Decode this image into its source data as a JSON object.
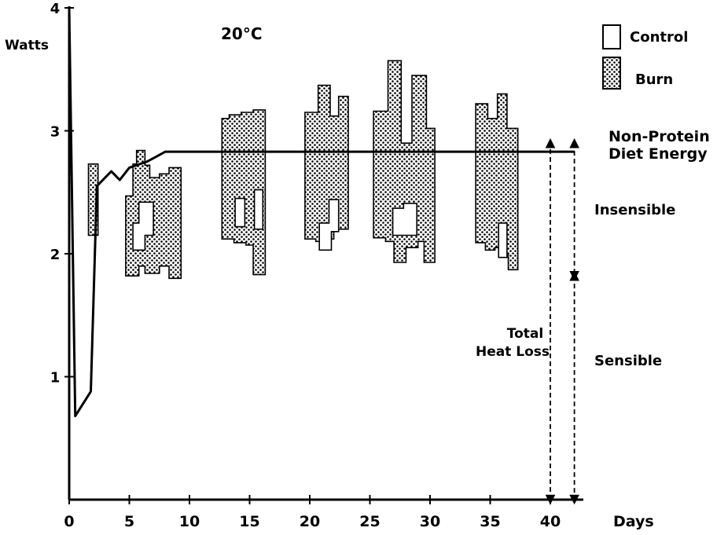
{
  "chart_data": {
    "type": "area",
    "ylabel": "Watts",
    "xlabel": "Days",
    "temperature": "20°C",
    "xlim": [
      0,
      42
    ],
    "ylim": [
      0,
      4
    ],
    "xticks": [
      "0",
      "5",
      "10",
      "15",
      "20",
      "25",
      "30",
      "35",
      "40"
    ],
    "yticks": [
      "1",
      "2",
      "3",
      "4"
    ],
    "legend": {
      "placement": "top-right",
      "entries": [
        {
          "name": "Control",
          "style": "open"
        },
        {
          "name": "Burn",
          "style": "stippled"
        }
      ]
    },
    "diet_energy": {
      "label_line1": "Non-Protein",
      "label_line2": "Diet Energy",
      "points": [
        [
          0,
          4.0
        ],
        [
          0.5,
          0.68
        ],
        [
          1.8,
          0.88
        ],
        [
          2.3,
          2.55
        ],
        [
          3.5,
          2.67
        ],
        [
          4.2,
          2.6
        ],
        [
          5.0,
          2.7
        ],
        [
          6.5,
          2.75
        ],
        [
          8.0,
          2.83
        ],
        [
          42,
          2.83
        ]
      ]
    },
    "burn_blocks": [
      {
        "top": [
          [
            1.6,
            2.73
          ],
          [
            2.4,
            2.73
          ]
        ],
        "bottom": [
          [
            1.6,
            2.15
          ],
          [
            2.4,
            2.15
          ]
        ]
      },
      {
        "top": [
          [
            4.7,
            2.47
          ],
          [
            5.3,
            2.47
          ],
          [
            5.3,
            2.73
          ],
          [
            5.6,
            2.73
          ],
          [
            5.6,
            2.84
          ],
          [
            6.3,
            2.84
          ],
          [
            6.3,
            2.72
          ],
          [
            6.7,
            2.72
          ],
          [
            6.7,
            2.62
          ],
          [
            7.5,
            2.62
          ],
          [
            7.5,
            2.65
          ],
          [
            8.3,
            2.65
          ],
          [
            8.3,
            2.7
          ],
          [
            9.3,
            2.7
          ]
        ],
        "bottom": [
          [
            4.7,
            1.82
          ],
          [
            5.8,
            1.82
          ],
          [
            5.8,
            1.9
          ],
          [
            6.3,
            1.9
          ],
          [
            6.3,
            1.84
          ],
          [
            7.5,
            1.84
          ],
          [
            7.5,
            1.9
          ],
          [
            8.3,
            1.9
          ],
          [
            8.3,
            1.8
          ],
          [
            9.3,
            1.8
          ]
        ]
      },
      {
        "top": [
          [
            12.7,
            3.1
          ],
          [
            13.3,
            3.1
          ],
          [
            13.3,
            3.13
          ],
          [
            14.3,
            3.13
          ],
          [
            14.3,
            3.15
          ],
          [
            15.3,
            3.15
          ],
          [
            15.3,
            3.17
          ],
          [
            16.3,
            3.17
          ]
        ],
        "bottom": [
          [
            12.7,
            2.12
          ],
          [
            13.7,
            2.12
          ],
          [
            13.7,
            2.09
          ],
          [
            14.7,
            2.09
          ],
          [
            14.7,
            2.07
          ],
          [
            15.3,
            2.07
          ],
          [
            15.3,
            1.83
          ],
          [
            16.3,
            1.83
          ]
        ]
      },
      {
        "top": [
          [
            19.6,
            3.15
          ],
          [
            20.7,
            3.15
          ],
          [
            20.7,
            3.37
          ],
          [
            21.7,
            3.37
          ],
          [
            21.7,
            3.12
          ],
          [
            22.4,
            3.12
          ],
          [
            22.4,
            3.28
          ],
          [
            23.2,
            3.28
          ]
        ],
        "bottom": [
          [
            19.6,
            2.12
          ],
          [
            20.5,
            2.12
          ],
          [
            20.5,
            2.1
          ],
          [
            21.0,
            2.1
          ],
          [
            21.0,
            2.12
          ],
          [
            22.0,
            2.12
          ],
          [
            22.0,
            2.2
          ],
          [
            23.2,
            2.2
          ]
        ]
      },
      {
        "top": [
          [
            25.3,
            3.16
          ],
          [
            26.5,
            3.16
          ],
          [
            26.5,
            3.57
          ],
          [
            27.6,
            3.57
          ],
          [
            27.6,
            2.9
          ],
          [
            28.5,
            2.9
          ],
          [
            28.5,
            3.45
          ],
          [
            29.7,
            3.45
          ],
          [
            29.7,
            3.02
          ],
          [
            30.4,
            3.02
          ]
        ],
        "bottom": [
          [
            25.3,
            2.13
          ],
          [
            26.3,
            2.13
          ],
          [
            26.3,
            2.1
          ],
          [
            27.0,
            2.1
          ],
          [
            27.0,
            1.93
          ],
          [
            28.0,
            1.93
          ],
          [
            28.0,
            2.05
          ],
          [
            29.0,
            2.05
          ],
          [
            29.0,
            2.1
          ],
          [
            29.5,
            2.1
          ],
          [
            29.5,
            1.93
          ],
          [
            30.4,
            1.93
          ]
        ]
      },
      {
        "top": [
          [
            33.8,
            3.22
          ],
          [
            34.8,
            3.22
          ],
          [
            34.8,
            3.1
          ],
          [
            35.6,
            3.1
          ],
          [
            35.6,
            3.3
          ],
          [
            36.4,
            3.3
          ],
          [
            36.4,
            3.02
          ],
          [
            37.3,
            3.02
          ]
        ],
        "bottom": [
          [
            33.8,
            2.09
          ],
          [
            34.6,
            2.09
          ],
          [
            34.6,
            2.03
          ],
          [
            35.4,
            2.03
          ],
          [
            35.4,
            2.05
          ],
          [
            36.0,
            2.05
          ],
          [
            36.0,
            2.0
          ],
          [
            36.5,
            2.0
          ],
          [
            36.5,
            1.87
          ],
          [
            37.3,
            1.87
          ]
        ]
      }
    ],
    "control_blocks": [
      {
        "outline": [
          [
            5.3,
            2.03
          ],
          [
            5.3,
            2.25
          ],
          [
            5.8,
            2.25
          ],
          [
            5.8,
            2.42
          ],
          [
            7.0,
            2.42
          ],
          [
            7.0,
            2.15
          ],
          [
            6.3,
            2.15
          ],
          [
            6.3,
            2.03
          ]
        ]
      },
      {
        "outline": [
          [
            13.8,
            2.22
          ],
          [
            13.8,
            2.45
          ],
          [
            14.6,
            2.45
          ],
          [
            14.6,
            2.22
          ]
        ]
      },
      {
        "outline": [
          [
            15.4,
            2.2
          ],
          [
            15.4,
            2.52
          ],
          [
            16.1,
            2.52
          ],
          [
            16.1,
            2.2
          ]
        ]
      },
      {
        "outline": [
          [
            20.8,
            2.03
          ],
          [
            20.8,
            2.25
          ],
          [
            21.6,
            2.25
          ],
          [
            21.6,
            2.44
          ],
          [
            22.4,
            2.44
          ],
          [
            22.4,
            2.18
          ],
          [
            21.8,
            2.18
          ],
          [
            21.8,
            2.03
          ]
        ]
      },
      {
        "outline": [
          [
            26.9,
            2.15
          ],
          [
            26.9,
            2.37
          ],
          [
            27.8,
            2.37
          ],
          [
            27.8,
            2.41
          ],
          [
            28.9,
            2.41
          ],
          [
            28.9,
            2.15
          ]
        ]
      },
      {
        "outline": [
          [
            35.7,
            1.97
          ],
          [
            35.7,
            2.25
          ],
          [
            36.4,
            2.25
          ],
          [
            36.4,
            1.97
          ]
        ]
      }
    ],
    "annotations": {
      "insensible": "Insensible",
      "sensible": "Sensible",
      "total_line1": "Total",
      "total_line2": "Heat Loss"
    },
    "arrows": [
      {
        "x": 40.0,
        "from": 0,
        "to": 2.9,
        "label": "total heat loss"
      },
      {
        "x": 42.0,
        "from": 2.9,
        "to": 1.82,
        "label": "insensible"
      },
      {
        "x": 42.0,
        "from": 1.82,
        "to": 0,
        "label": "sensible"
      }
    ],
    "grid": false
  }
}
